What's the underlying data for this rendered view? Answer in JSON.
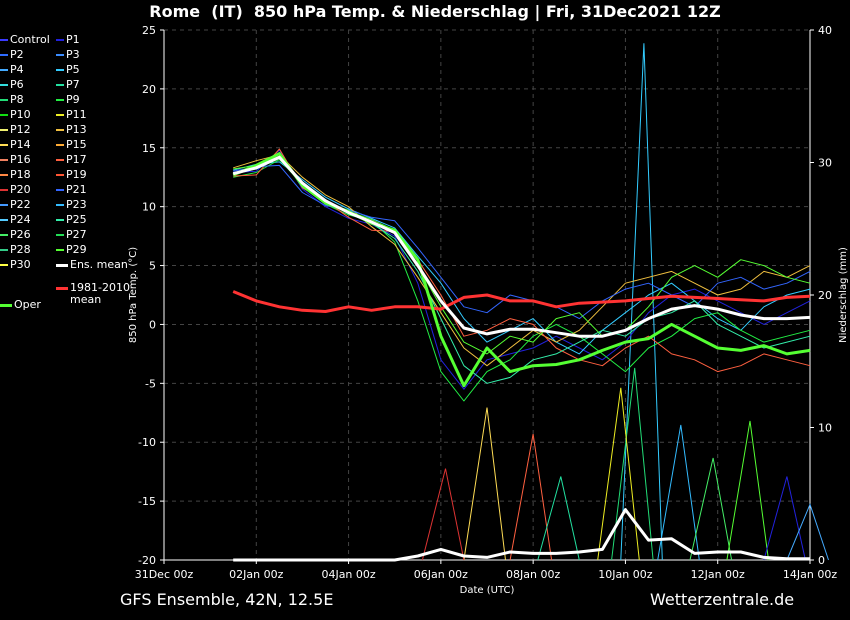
{
  "header": {
    "title": "Rome  (IT)  850 hPa Temp. & Niederschlag | Fri, 31Dec2021 12Z"
  },
  "footer": {
    "left": "GFS Ensemble, 42N, 12.5E",
    "right": "Wetterzentrale.de"
  },
  "legend": {
    "members": [
      {
        "label": "Control",
        "color": "#3a3aff"
      },
      {
        "label": "P1",
        "color": "#2222dd"
      },
      {
        "label": "P2",
        "color": "#2f6cff"
      },
      {
        "label": "P3",
        "color": "#3b8cff"
      },
      {
        "label": "P4",
        "color": "#44aaff"
      },
      {
        "label": "P5",
        "color": "#33ccff"
      },
      {
        "label": "P6",
        "color": "#33dddd"
      },
      {
        "label": "P7",
        "color": "#22e0a0"
      },
      {
        "label": "P8",
        "color": "#22dd77"
      },
      {
        "label": "P9",
        "color": "#22ee44"
      },
      {
        "label": "P10",
        "color": "#11dd11"
      },
      {
        "label": "P11",
        "color": "#eeee22"
      },
      {
        "label": "P12",
        "color": "#f0f070"
      },
      {
        "label": "P13",
        "color": "#f0c040"
      },
      {
        "label": "P14",
        "color": "#ffdd55"
      },
      {
        "label": "P15",
        "color": "#ffaa33"
      },
      {
        "label": "P16",
        "color": "#f08060"
      },
      {
        "label": "P17",
        "color": "#ff6040"
      },
      {
        "label": "P18",
        "color": "#ff8844"
      },
      {
        "label": "P19",
        "color": "#ff5533"
      },
      {
        "label": "P20",
        "color": "#dd3333"
      },
      {
        "label": "P21",
        "color": "#3366ff"
      },
      {
        "label": "P22",
        "color": "#4499ff"
      },
      {
        "label": "P23",
        "color": "#33bbff"
      },
      {
        "label": "P24",
        "color": "#55ccff"
      },
      {
        "label": "P25",
        "color": "#33eeaa"
      },
      {
        "label": "P26",
        "color": "#44ee66"
      },
      {
        "label": "P27",
        "color": "#22dd55"
      },
      {
        "label": "P28",
        "color": "#33cc88"
      },
      {
        "label": "P29",
        "color": "#55ff33"
      },
      {
        "label": "P30",
        "color": "#ffff44"
      }
    ],
    "ens_mean": {
      "label": "Ens. mean",
      "color": "#ffffff"
    },
    "climate": {
      "label_line1": "1981-2010",
      "label_line2": "mean",
      "color": "#ff3333"
    },
    "oper": {
      "label": "Oper",
      "color": "#55ff33"
    }
  },
  "chart_data": {
    "type": "line",
    "x_axis": {
      "label": "Date (UTC)",
      "ticks": [
        "31Dec 00z",
        "02Jan 00z",
        "04Jan 00z",
        "06Jan 00z",
        "08Jan 00z",
        "10Jan 00z",
        "12Jan 00z",
        "14Jan 00z"
      ],
      "range": [
        "2021-12-31 00z",
        "2022-01-14 00z"
      ]
    },
    "y_left": {
      "label": "850 hPa Temp. (°C)",
      "range": [
        -20,
        25
      ],
      "ticks": [
        25,
        20,
        15,
        10,
        5,
        0,
        -5,
        -10,
        -15,
        -20
      ]
    },
    "y_right": {
      "label": "Niederschlag (mm)",
      "range": [
        0,
        40
      ],
      "ticks": [
        40,
        30,
        20,
        10,
        0
      ]
    },
    "grid": true,
    "x_days": [
      1.5,
      2.0,
      2.5,
      3.0,
      3.5,
      4.0,
      4.5,
      5.0,
      5.5,
      6.0,
      6.5,
      7.0,
      7.5,
      8.0,
      8.5,
      9.0,
      9.5,
      10.0,
      10.5,
      11.0,
      11.5,
      12.0,
      12.5,
      13.0,
      13.5,
      14.0
    ],
    "temperature": {
      "ens_mean": [
        12.8,
        13.3,
        14.2,
        12.0,
        10.5,
        9.5,
        8.7,
        7.8,
        5.0,
        2.0,
        -0.3,
        -0.8,
        -0.4,
        -0.4,
        -0.7,
        -1.0,
        -1.0,
        -0.5,
        0.5,
        1.3,
        1.6,
        1.3,
        0.8,
        0.5,
        0.5,
        0.6
      ],
      "oper": [
        12.7,
        13.5,
        14.5,
        11.8,
        10.3,
        9.6,
        8.6,
        8.0,
        5.5,
        -1.0,
        -5.2,
        -2.0,
        -4.0,
        -3.5,
        -3.4,
        -3.0,
        -2.2,
        -1.5,
        -1.2,
        0.0,
        -1.0,
        -2.0,
        -2.2,
        -1.8,
        -2.5,
        -2.2
      ],
      "climate_mean": [
        2.8,
        2.0,
        1.5,
        1.2,
        1.1,
        1.5,
        1.2,
        1.5,
        1.5,
        1.3,
        2.3,
        2.5,
        2.0,
        2.0,
        1.5,
        1.8,
        1.9,
        2.0,
        2.2,
        2.4,
        2.3,
        2.2,
        2.1,
        2.0,
        2.3,
        2.4
      ],
      "members_sample": [
        [
          12.9,
          13.0,
          14.8,
          11.5,
          10.0,
          9.0,
          8.5,
          7.5,
          3.5,
          -3.0,
          -5.5,
          -3.0,
          -2.5,
          -2.0,
          -1.0,
          -2.0,
          -3.0,
          -1.5,
          1.0,
          2.5,
          3.0,
          2.0,
          1.0,
          0.0,
          1.0,
          2.0
        ],
        [
          13.1,
          13.6,
          13.8,
          12.3,
          10.8,
          9.8,
          9.0,
          8.2,
          5.8,
          3.5,
          0.5,
          -1.5,
          -0.5,
          0.5,
          -1.5,
          -2.5,
          -0.5,
          1.0,
          2.5,
          3.5,
          2.0,
          0.5,
          -0.5,
          1.5,
          2.5,
          3.0
        ],
        [
          12.5,
          12.9,
          14.0,
          11.9,
          10.2,
          9.3,
          8.8,
          7.0,
          2.0,
          -4.0,
          -6.5,
          -4.0,
          -3.0,
          -1.0,
          0.0,
          -1.0,
          -2.5,
          -4.0,
          -2.0,
          -1.0,
          0.5,
          1.0,
          -0.5,
          -1.5,
          -1.0,
          -0.5
        ],
        [
          13.3,
          13.9,
          14.4,
          12.5,
          11.0,
          10.0,
          8.3,
          6.8,
          4.0,
          1.0,
          -2.0,
          -3.5,
          -2.0,
          -0.5,
          -1.5,
          -0.5,
          1.5,
          3.5,
          4.0,
          4.5,
          3.5,
          2.5,
          3.0,
          4.5,
          4.0,
          5.0
        ],
        [
          12.6,
          12.7,
          14.9,
          11.6,
          10.5,
          9.1,
          8.0,
          7.9,
          5.5,
          2.5,
          -1.0,
          -0.5,
          0.5,
          0.0,
          -2.0,
          -3.0,
          -3.5,
          -2.0,
          -1.0,
          -2.5,
          -3.0,
          -4.0,
          -3.5,
          -2.5,
          -3.0,
          -3.5
        ],
        [
          13.0,
          13.4,
          13.5,
          11.2,
          10.1,
          9.7,
          9.1,
          8.8,
          6.5,
          4.0,
          1.5,
          1.0,
          2.5,
          2.0,
          1.5,
          0.5,
          2.0,
          3.0,
          3.5,
          2.5,
          1.5,
          3.5,
          4.0,
          3.0,
          3.5,
          4.5
        ],
        [
          12.8,
          13.2,
          14.1,
          12.1,
          10.6,
          9.4,
          8.6,
          7.3,
          4.5,
          0.5,
          -3.5,
          -5.0,
          -4.5,
          -3.0,
          -2.5,
          -1.5,
          -0.5,
          -1.0,
          0.5,
          1.0,
          2.0,
          0.0,
          -1.0,
          -2.0,
          -1.5,
          -1.0
        ],
        [
          13.2,
          13.5,
          14.6,
          11.8,
          10.4,
          9.6,
          8.9,
          8.0,
          5.0,
          1.5,
          -1.5,
          -2.5,
          -1.0,
          -1.5,
          0.5,
          1.0,
          -1.0,
          -0.5,
          1.5,
          4.0,
          5.0,
          4.0,
          5.5,
          5.0,
          4.0,
          3.5
        ]
      ]
    },
    "precipitation_mm": {
      "ens_mean": [
        0,
        0,
        0,
        0,
        0,
        0,
        0,
        0,
        0.3,
        0.8,
        0.3,
        0.2,
        0.6,
        0.5,
        0.5,
        0.6,
        0.8,
        3.8,
        1.5,
        1.6,
        0.5,
        0.6,
        0.6,
        0.2,
        0.1,
        0.1
      ],
      "peaks": [
        {
          "x": 10.4,
          "value": 39.0
        },
        {
          "x": 10.2,
          "value": 14.5
        },
        {
          "x": 9.9,
          "value": 13.0
        },
        {
          "x": 7.0,
          "value": 11.5
        },
        {
          "x": 8.0,
          "value": 9.5
        },
        {
          "x": 6.1,
          "value": 6.9
        },
        {
          "x": 11.2,
          "value": 10.2
        },
        {
          "x": 11.9,
          "value": 7.7
        },
        {
          "x": 12.7,
          "value": 10.5
        },
        {
          "x": 13.5,
          "value": 6.3
        },
        {
          "x": 14.0,
          "value": 4.2
        },
        {
          "x": 8.6,
          "value": 6.3
        }
      ]
    }
  }
}
